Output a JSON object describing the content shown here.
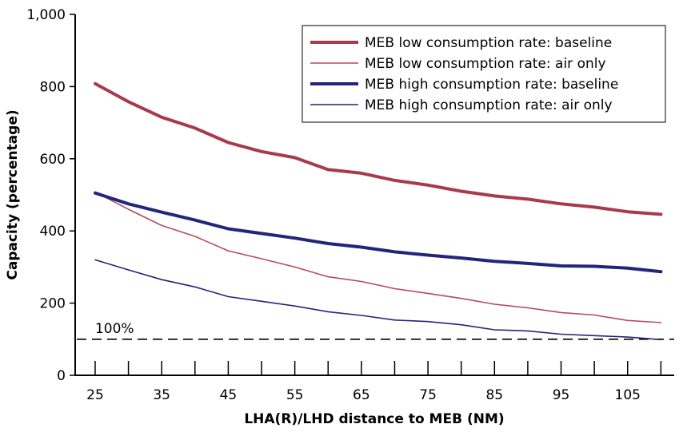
{
  "chart_data": {
    "type": "line",
    "title": "",
    "xlabel": "LHA(R)/LHD distance to MEB (NM)",
    "ylabel": "Capacity (percentage)",
    "xlim": [
      22,
      112
    ],
    "ylim": [
      0,
      1000
    ],
    "x_ticks": [
      25,
      30,
      35,
      40,
      45,
      50,
      55,
      60,
      65,
      70,
      75,
      80,
      85,
      90,
      95,
      100,
      105,
      110
    ],
    "x_tick_labels": [
      "25",
      "35",
      "45",
      "55",
      "65",
      "75",
      "85",
      "95",
      "105"
    ],
    "x_tick_label_values": [
      25,
      35,
      45,
      55,
      65,
      75,
      85,
      95,
      105
    ],
    "y_ticks": [
      0,
      200,
      400,
      600,
      800,
      1000
    ],
    "y_tick_labels": [
      "0",
      "200",
      "400",
      "600",
      "800",
      "1,000"
    ],
    "grid": false,
    "legend_position": "top-right",
    "x": [
      25,
      30,
      35,
      40,
      45,
      50,
      55,
      60,
      65,
      70,
      75,
      80,
      85,
      90,
      95,
      100,
      105,
      110
    ],
    "series": [
      {
        "name": "MEB low consumption rate: baseline",
        "color": "#a83a4c",
        "weight": "thick",
        "values": [
          808,
          758,
          715,
          685,
          645,
          620,
          603,
          570,
          560,
          540,
          527,
          510,
          497,
          488,
          475,
          466,
          453,
          446
        ]
      },
      {
        "name": "MEB low consumption rate: air only",
        "color": "#b84a58",
        "weight": "thin",
        "values": [
          508,
          460,
          415,
          385,
          345,
          323,
          300,
          273,
          260,
          240,
          227,
          213,
          197,
          187,
          174,
          167,
          152,
          146
        ]
      },
      {
        "name": "MEB high consumption rate: baseline",
        "color": "#22257a",
        "weight": "thick",
        "values": [
          505,
          475,
          452,
          430,
          406,
          393,
          380,
          365,
          355,
          342,
          333,
          325,
          316,
          310,
          303,
          302,
          297,
          287
        ]
      },
      {
        "name": "MEB high consumption rate: air only",
        "color": "#22257a",
        "weight": "thin",
        "values": [
          320,
          292,
          265,
          245,
          218,
          205,
          192,
          176,
          166,
          153,
          149,
          140,
          126,
          123,
          114,
          110,
          106,
          99
        ]
      }
    ],
    "reference_line": {
      "value": 100,
      "label": "100%",
      "style": "dashed"
    }
  }
}
